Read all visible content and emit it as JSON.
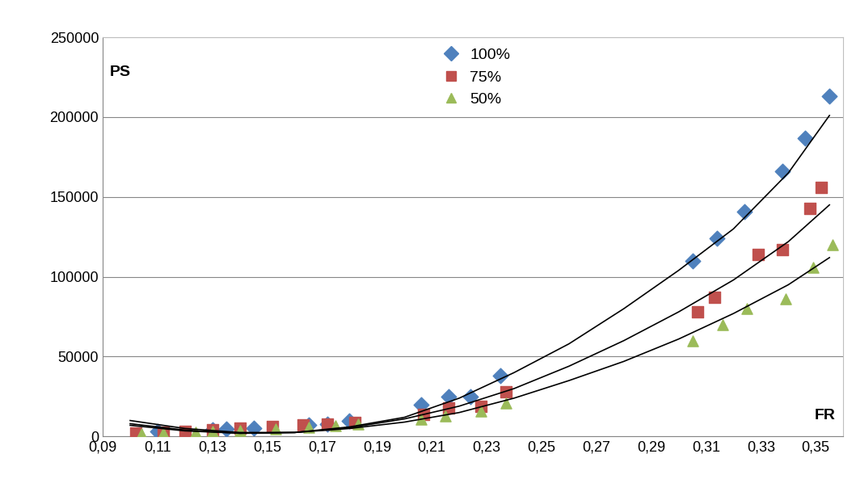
{
  "chart_data": {
    "type": "scatter",
    "xlabel": "FR",
    "ylabel": "PS",
    "xlim": [
      0.09,
      0.36
    ],
    "xticks": [
      {
        "value": 0.09,
        "label": "0,09"
      },
      {
        "value": 0.11,
        "label": "0,11"
      },
      {
        "value": 0.13,
        "label": "0,13"
      },
      {
        "value": 0.15,
        "label": "0,15"
      },
      {
        "value": 0.17,
        "label": "0,17"
      },
      {
        "value": 0.19,
        "label": "0,19"
      },
      {
        "value": 0.21,
        "label": "0,21"
      },
      {
        "value": 0.23,
        "label": "0,23"
      },
      {
        "value": 0.25,
        "label": "0,25"
      },
      {
        "value": 0.27,
        "label": "0,27"
      },
      {
        "value": 0.29,
        "label": "0,29"
      },
      {
        "value": 0.31,
        "label": "0,31"
      },
      {
        "value": 0.33,
        "label": "0,33"
      },
      {
        "value": 0.35,
        "label": "0,35"
      }
    ],
    "ylim": [
      0,
      250000
    ],
    "yticks": [
      0,
      50000,
      100000,
      150000,
      200000,
      250000
    ],
    "grid": true,
    "legend": "upper center",
    "series": [
      {
        "name": "100%",
        "type": "scatter",
        "color": "#4f81bd",
        "marker": "diamond",
        "x": [
          0.11,
          0.13,
          0.135,
          0.145,
          0.165,
          0.172,
          0.18,
          0.206,
          0.216,
          0.224,
          0.235,
          0.305,
          0.314,
          0.324,
          0.338,
          0.346,
          0.355
        ],
        "values": [
          3000,
          4000,
          4500,
          5000,
          7000,
          8000,
          10000,
          20000,
          25000,
          25000,
          38000,
          110000,
          124000,
          141000,
          166000,
          187000,
          213000
        ]
      },
      {
        "name": "75%",
        "type": "scatter",
        "color": "#c0504d",
        "marker": "square",
        "x": [
          0.102,
          0.112,
          0.12,
          0.13,
          0.14,
          0.152,
          0.163,
          0.172,
          0.182,
          0.207,
          0.216,
          0.228,
          0.237,
          0.307,
          0.313,
          0.329,
          0.338,
          0.348,
          0.352
        ],
        "values": [
          2000,
          2500,
          3000,
          4000,
          5000,
          6000,
          7000,
          7500,
          9000,
          14000,
          18000,
          19000,
          28000,
          78000,
          87000,
          114000,
          117000,
          143000,
          156000
        ]
      },
      {
        "name": "50%",
        "type": "scatter",
        "color": "#9bbb59",
        "marker": "triangle",
        "x": [
          0.104,
          0.112,
          0.124,
          0.13,
          0.14,
          0.153,
          0.165,
          0.175,
          0.183,
          0.206,
          0.215,
          0.228,
          0.237,
          0.305,
          0.316,
          0.325,
          0.339,
          0.349,
          0.356
        ],
        "values": [
          1500,
          2000,
          2500,
          3000,
          3500,
          4500,
          5500,
          6500,
          7500,
          11000,
          13000,
          16000,
          21000,
          60000,
          70000,
          80000,
          86000,
          106000,
          120000
        ]
      },
      {
        "type": "line",
        "color": "#000000",
        "line_style": "solid",
        "x": [
          0.1,
          0.12,
          0.14,
          0.16,
          0.18,
          0.2,
          0.22,
          0.24,
          0.26,
          0.28,
          0.3,
          0.32,
          0.34,
          0.355
        ],
        "values": [
          10000,
          5000,
          2500,
          2500,
          6000,
          12000,
          24000,
          40000,
          58000,
          80000,
          104000,
          130000,
          165000,
          201000
        ]
      },
      {
        "type": "line",
        "color": "#000000",
        "line_style": "solid",
        "x": [
          0.1,
          0.12,
          0.14,
          0.16,
          0.18,
          0.2,
          0.22,
          0.24,
          0.26,
          0.28,
          0.3,
          0.32,
          0.34,
          0.355
        ],
        "values": [
          8000,
          4000,
          2000,
          2500,
          5500,
          11000,
          19000,
          30000,
          44000,
          60000,
          78000,
          98000,
          122000,
          145000
        ]
      },
      {
        "type": "line",
        "color": "#000000",
        "line_style": "solid",
        "x": [
          0.1,
          0.12,
          0.14,
          0.16,
          0.18,
          0.2,
          0.22,
          0.24,
          0.26,
          0.28,
          0.3,
          0.32,
          0.34,
          0.355
        ],
        "values": [
          7000,
          3500,
          2000,
          2500,
          5000,
          9000,
          15000,
          24000,
          35000,
          47000,
          61000,
          77000,
          95000,
          112000
        ]
      }
    ]
  }
}
